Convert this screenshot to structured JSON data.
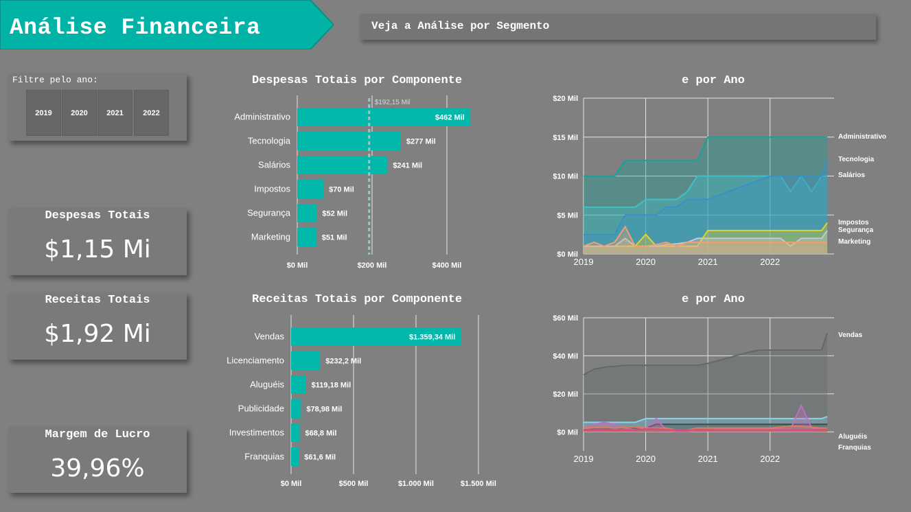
{
  "header": {
    "title": "Análise Financeira",
    "segment_button": "Veja a Análise por Segmento",
    "colors": {
      "banner": "#00b3a6",
      "accent": "#01b8aa"
    }
  },
  "filter": {
    "label": "Filtre pelo ano:",
    "years": [
      "2019",
      "2020",
      "2021",
      "2022"
    ]
  },
  "kpis": {
    "expenses": {
      "title": "Despesas Totais",
      "value": "$1,15 Mi"
    },
    "revenue": {
      "title": "Receitas Totais",
      "value": "$1,92 Mi"
    },
    "margin": {
      "title": "Margem de Lucro",
      "value": "39,96%"
    }
  },
  "expense_panel": {
    "title": "Despesas Totais por Componente",
    "line_title": "e por Ano"
  },
  "revenue_panel": {
    "title": "Receitas Totais por Componente",
    "line_title": "e por Ano"
  },
  "chart_data": [
    {
      "id": "expense_bar",
      "type": "bar",
      "orientation": "horizontal",
      "categories": [
        "Administrativo",
        "Tecnologia",
        "Salários",
        "Impostos",
        "Segurança",
        "Marketing"
      ],
      "values": [
        462,
        277,
        241,
        70,
        52,
        51
      ],
      "value_labels": [
        "$462 Mil",
        "$277 Mil",
        "$241 Mil",
        "$70 Mil",
        "$52 Mil",
        "$51 Mil"
      ],
      "xlim": [
        0,
        490
      ],
      "xticks": [
        0,
        200,
        400
      ],
      "xtick_labels": [
        "$0 Mil",
        "$200 Mil",
        "$400 Mil"
      ],
      "reference_line": {
        "value": 192.15,
        "label": "$192,15 Mil"
      },
      "color": "#01b8aa"
    },
    {
      "id": "revenue_bar",
      "type": "bar",
      "orientation": "horizontal",
      "categories": [
        "Vendas",
        "Licenciamento",
        "Aluguéis",
        "Publicidade",
        "Investimentos",
        "Franquias"
      ],
      "values": [
        1359.34,
        232.2,
        119.18,
        78.98,
        68.8,
        61.6
      ],
      "value_labels": [
        "$1.359,34 Mil",
        "$232,2 Mil",
        "$119,18 Mil",
        "$78,98 Mil",
        "$68,8 Mil",
        "$61,6 Mil"
      ],
      "xlim": [
        0,
        1550
      ],
      "xticks": [
        0,
        500,
        1000,
        1500
      ],
      "xtick_labels": [
        "$0 Mil",
        "$500 Mil",
        "$1.000 Mil",
        "$1.500 Mil"
      ],
      "color": "#01b8aa"
    },
    {
      "id": "expense_line",
      "type": "area",
      "x": [
        2019.0,
        2019.17,
        2019.33,
        2019.5,
        2019.67,
        2019.83,
        2020.0,
        2020.17,
        2020.33,
        2020.5,
        2020.67,
        2020.83,
        2021.0,
        2021.17,
        2021.33,
        2021.5,
        2021.67,
        2021.83,
        2022.0,
        2022.17,
        2022.33,
        2022.5,
        2022.67,
        2022.83,
        2022.92
      ],
      "xlim": [
        2019,
        2022.92
      ],
      "xticks": [
        2019,
        2020,
        2021,
        2022
      ],
      "xtick_labels": [
        "2019",
        "2020",
        "2021",
        "2022"
      ],
      "ylim": [
        0,
        20
      ],
      "yticks": [
        0,
        5,
        10,
        15,
        20
      ],
      "ytick_labels": [
        "$0 Mil",
        "$5 Mil",
        "$10 Mil",
        "$15 Mil",
        "$20 Mil"
      ],
      "series": [
        {
          "name": "Administrativo",
          "color": "#12a39a",
          "values": [
            10,
            10,
            10,
            10,
            12,
            12,
            12,
            12,
            12,
            12,
            12,
            12,
            15,
            15,
            15,
            15,
            15,
            15,
            15,
            15,
            15,
            15,
            15,
            15,
            15
          ]
        },
        {
          "name": "Tecnologia",
          "color": "#3fc1c9",
          "values": [
            6,
            6,
            6,
            6,
            6,
            6,
            7,
            7,
            7,
            7,
            8,
            10,
            10,
            10,
            10,
            10,
            10,
            10,
            10,
            10,
            8,
            10,
            8,
            10,
            10
          ]
        },
        {
          "name": "Salários",
          "color": "#3a8fc7",
          "values": [
            2.5,
            2.5,
            2.5,
            2.5,
            5,
            5,
            5,
            5,
            6,
            6,
            7,
            7,
            7,
            7.5,
            8,
            8.5,
            9,
            9.5,
            10,
            10,
            10,
            10,
            10,
            10,
            12
          ]
        },
        {
          "name": "Impostos",
          "color": "#e8d225",
          "values": [
            1,
            1,
            1,
            1,
            1,
            1,
            2.5,
            1,
            1,
            1,
            1,
            1,
            3,
            3,
            3,
            3,
            3,
            3,
            3,
            3,
            3,
            3,
            3,
            3,
            4
          ]
        },
        {
          "name": "Segurança",
          "color": "#c8c8c8",
          "values": [
            1,
            1,
            1,
            1,
            2,
            1,
            1,
            1,
            1.2,
            1.3,
            1.5,
            2,
            2,
            2,
            2,
            2,
            2,
            2,
            2,
            2,
            1,
            2,
            2,
            2,
            3
          ]
        },
        {
          "name": "Marketing",
          "color": "#f0a070",
          "values": [
            1,
            1.5,
            1,
            1.5,
            3.5,
            1,
            1,
            1.2,
            1.5,
            1,
            1.5,
            1.5,
            1.5,
            1.5,
            1.5,
            1.5,
            1.5,
            1.5,
            1.5,
            1.5,
            1.5,
            1.5,
            1.5,
            1.5,
            1.5
          ]
        }
      ]
    },
    {
      "id": "revenue_line",
      "type": "area",
      "x": [
        2019.0,
        2019.17,
        2019.33,
        2019.5,
        2019.67,
        2019.83,
        2020.0,
        2020.17,
        2020.33,
        2020.5,
        2020.67,
        2020.83,
        2021.0,
        2021.17,
        2021.33,
        2021.5,
        2021.67,
        2021.83,
        2022.0,
        2022.17,
        2022.33,
        2022.5,
        2022.67,
        2022.83,
        2022.92
      ],
      "xlim": [
        2019,
        2022.92
      ],
      "xticks": [
        2019,
        2020,
        2021,
        2022
      ],
      "xtick_labels": [
        "2019",
        "2020",
        "2021",
        "2022"
      ],
      "ylim": [
        -10,
        60
      ],
      "yticks": [
        0,
        20,
        40,
        60
      ],
      "ytick_labels": [
        "$0 Mil",
        "$20 Mil",
        "$40 Mil",
        "$60 Mil"
      ],
      "series": [
        {
          "name": "Vendas",
          "color": "#5f6a6a",
          "values": [
            30,
            33,
            34,
            34.5,
            35,
            35,
            35,
            35,
            35,
            35,
            35,
            35,
            36,
            37.5,
            39,
            40.5,
            42,
            43,
            43,
            43,
            43,
            43,
            43,
            43,
            52
          ]
        },
        {
          "name": "Aluguéis",
          "color": "#8ad4eb",
          "values": [
            5,
            5,
            5,
            5,
            5,
            5,
            7,
            7,
            7,
            7,
            7,
            7,
            7,
            7,
            7,
            7,
            7,
            7,
            7,
            7,
            7,
            7,
            7,
            7,
            8
          ]
        },
        {
          "name": "Licenciamento",
          "color": "#3d4a4a",
          "values": [
            1,
            1.5,
            1.5,
            2,
            2,
            2,
            2,
            4,
            4,
            4,
            4,
            4,
            4,
            4,
            4,
            4,
            4,
            4,
            4,
            4,
            4,
            4,
            4,
            4,
            4
          ]
        },
        {
          "name": "Publicidade",
          "color": "#c070c0",
          "values": [
            2,
            4,
            5,
            4,
            2,
            1,
            2,
            7,
            1,
            0,
            0,
            1,
            1,
            1.5,
            1.5,
            1.5,
            1.5,
            1.5,
            1.5,
            1.5,
            1.5,
            14,
            2,
            2,
            2
          ]
        },
        {
          "name": "Investimentos",
          "color": "#e07a60",
          "values": [
            2,
            2.5,
            2.5,
            2,
            2.5,
            2.5,
            2,
            2,
            2,
            1,
            1,
            2,
            2,
            2,
            2,
            2,
            2,
            2,
            2,
            2.5,
            3,
            3,
            2.5,
            2,
            2
          ]
        },
        {
          "name": "Franquias",
          "color": "#d24e75",
          "values": [
            1,
            1,
            1,
            1,
            1,
            1,
            1.5,
            1.5,
            1,
            1,
            1,
            1,
            1,
            1,
            1,
            1,
            1,
            1,
            1,
            1,
            1,
            1,
            1,
            1,
            1
          ]
        }
      ],
      "legend_labels": [
        "Vendas",
        "Aluguéis",
        "Franquias"
      ]
    }
  ]
}
